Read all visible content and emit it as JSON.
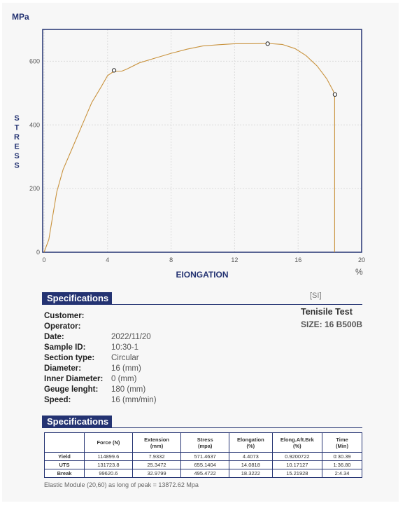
{
  "chart_data": {
    "type": "line",
    "y_unit": "MPa",
    "ylabel": "STRESS",
    "xlabel": "EIONGATION",
    "x_unit": "%",
    "xlim": [
      0,
      20
    ],
    "ylim": [
      0,
      700
    ],
    "x_ticks": [
      0,
      4,
      8,
      12,
      16,
      20
    ],
    "y_ticks": [
      0,
      200,
      400,
      600
    ],
    "line_color": "#c9933e",
    "frame_color": "#243372",
    "grid": true,
    "series": [
      {
        "x": [
          0,
          0.3,
          0.5,
          0.8,
          1.2,
          1.8,
          2.4,
          3.0,
          3.6,
          4.0,
          4.3,
          4.6,
          4.9,
          5.2,
          6.0,
          7.0,
          8.0,
          9.0,
          10.0,
          11.0,
          12.0,
          13.0,
          14.1,
          15.0,
          15.8,
          16.5,
          17.2,
          17.8,
          18.2,
          18.3,
          18.3
        ],
        "y": [
          0,
          40,
          100,
          190,
          260,
          330,
          400,
          470,
          520,
          555,
          565,
          569,
          569,
          575,
          595,
          610,
          625,
          638,
          648,
          652,
          655,
          655,
          656,
          653,
          640,
          618,
          585,
          545,
          508,
          495,
          0
        ]
      }
    ],
    "points": [
      {
        "name": "Yield",
        "x": 4.4073,
        "y": 571.4637
      },
      {
        "name": "UTS",
        "x": 14.0818,
        "y": 655.1404
      },
      {
        "name": "Break",
        "x": 18.3222,
        "y": 495.4722
      }
    ]
  },
  "spec1": {
    "title": "Specifications"
  },
  "spec_rows": [
    {
      "label": "Customer:",
      "value": ""
    },
    {
      "label": "Operator:",
      "value": ""
    },
    {
      "label": "Date:",
      "value": "2022/11/20"
    },
    {
      "label": "Sample ID:",
      "value": "10:30-1"
    },
    {
      "label": "Section type:",
      "value": "Circular"
    },
    {
      "label": "Diameter:",
      "value": "16 (mm)"
    },
    {
      "label": "Inner Diameter:",
      "value": "0 (mm)"
    },
    {
      "label": "Geuge lenght:",
      "value": "180 (mm)"
    },
    {
      "label": "Speed:",
      "value": "16 (mm/min)"
    }
  ],
  "si": "[SI]",
  "test_title": "Tenisile Test",
  "size_label": "SIZE: 16 B500B",
  "spec2": {
    "title": "Specifications"
  },
  "table": {
    "headers": [
      "",
      "Force (N)",
      "Extension\n(mm)",
      "Stress\n(mpa)",
      "Elongation\n(%)",
      "Elong.Aft.Brk\n(%)",
      "Time\n(Min)"
    ],
    "rows": [
      [
        "Yield",
        "114899.6",
        "7.9332",
        "571.4637",
        "4.4073",
        "0.9200722",
        "0:30.39"
      ],
      [
        "UTS",
        "131723.8",
        "25.3472",
        "655.1404",
        "14.0818",
        "10.17127",
        "1:36.80"
      ],
      [
        "Break",
        "99620.6",
        "32.9799",
        "495.4722",
        "18.3222",
        "15.21928",
        "2:4.34"
      ]
    ]
  },
  "elastic_text": "Elastic Module (20,60) as long of peak = 13872.62 Mpa"
}
